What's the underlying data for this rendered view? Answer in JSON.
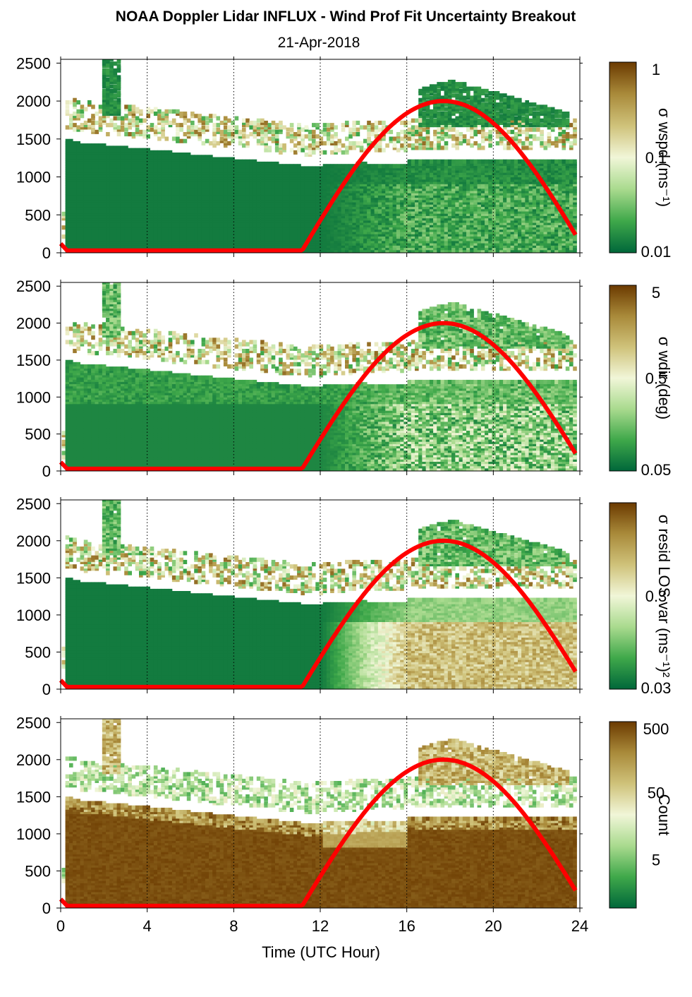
{
  "title": "NOAA Doppler Lidar INFLUX - Wind Prof Fit Uncertainty Breakout",
  "subtitle": "21-Apr-2018",
  "colors": {
    "dark_green": "#00673a",
    "mid_green": "#3fa84a",
    "light_green": "#a9da8e",
    "pale": "#f1f6d8",
    "olive": "#cfc27a",
    "tan": "#a98a3a",
    "brown": "#6b3a00",
    "curve": "#ff0000"
  },
  "chart_data": [
    {
      "type": "heatmap",
      "panel": 1,
      "x_range": [
        0,
        24
      ],
      "y_range": [
        0,
        2550
      ],
      "yticks": [
        "0",
        "500",
        "1000",
        "1500",
        "2000",
        "2500"
      ],
      "colorbar_label": "σ wspd (ms⁻¹)",
      "colorbar_ticks": [
        "1",
        "0.1",
        "0.01"
      ],
      "colorbar_scale": "log",
      "colorbar_range": [
        0.01,
        1
      ]
    },
    {
      "type": "heatmap",
      "panel": 2,
      "x_range": [
        0,
        24
      ],
      "y_range": [
        0,
        2550
      ],
      "yticks": [
        "0",
        "500",
        "1000",
        "1500",
        "2000",
        "2500"
      ],
      "colorbar_label": "σ wdir (deg)",
      "colorbar_ticks": [
        "5",
        "0.5",
        "0.05"
      ],
      "colorbar_scale": "log",
      "colorbar_range": [
        0.05,
        5
      ]
    },
    {
      "type": "heatmap",
      "panel": 3,
      "x_range": [
        0,
        24
      ],
      "y_range": [
        0,
        2550
      ],
      "yticks": [
        "0",
        "500",
        "1000",
        "1500",
        "2000",
        "2500"
      ],
      "colorbar_label": "σ resid LOS var (ms⁻¹)²",
      "colorbar_ticks": [
        "0.3",
        "0.03"
      ],
      "colorbar_scale": "log",
      "colorbar_range": [
        0.03,
        3
      ]
    },
    {
      "type": "heatmap",
      "panel": 4,
      "x_range": [
        0,
        24
      ],
      "y_range": [
        0,
        2550
      ],
      "yticks": [
        "0",
        "500",
        "1000",
        "1500",
        "2000",
        "2500"
      ],
      "xticks": [
        "0",
        "4",
        "8",
        "12",
        "16",
        "20",
        "24"
      ],
      "xlabel": "Time (UTC Hour)",
      "colorbar_label": "Count",
      "colorbar_ticks": [
        "500",
        "50",
        "5"
      ],
      "colorbar_scale": "log"
    }
  ],
  "overlay_curve": {
    "description_hidden": true,
    "start_hour": 11.1,
    "peak_hour": 17.7,
    "peak_height": 2000,
    "end_hour": 23.8,
    "end_height": 300,
    "early_hours": [
      0,
      0.3
    ],
    "early_heights": [
      120,
      30
    ]
  }
}
